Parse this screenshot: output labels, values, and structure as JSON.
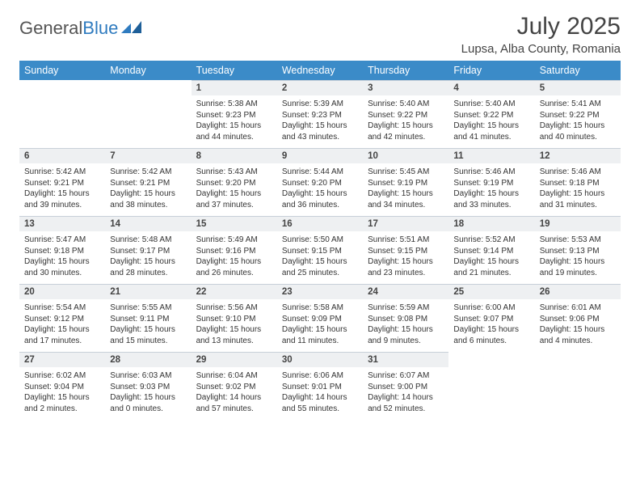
{
  "logo": {
    "word1": "General",
    "word2": "Blue"
  },
  "title": "July 2025",
  "location": "Lupsa, Alba County, Romania",
  "colors": {
    "header_bg": "#3b8bc8",
    "daynum_bg": "#eef0f2",
    "rule": "#c8d0d8"
  },
  "day_headers": [
    "Sunday",
    "Monday",
    "Tuesday",
    "Wednesday",
    "Thursday",
    "Friday",
    "Saturday"
  ],
  "weeks": [
    [
      {
        "n": "",
        "t": ""
      },
      {
        "n": "",
        "t": ""
      },
      {
        "n": "1",
        "t": "Sunrise: 5:38 AM\nSunset: 9:23 PM\nDaylight: 15 hours and 44 minutes."
      },
      {
        "n": "2",
        "t": "Sunrise: 5:39 AM\nSunset: 9:23 PM\nDaylight: 15 hours and 43 minutes."
      },
      {
        "n": "3",
        "t": "Sunrise: 5:40 AM\nSunset: 9:22 PM\nDaylight: 15 hours and 42 minutes."
      },
      {
        "n": "4",
        "t": "Sunrise: 5:40 AM\nSunset: 9:22 PM\nDaylight: 15 hours and 41 minutes."
      },
      {
        "n": "5",
        "t": "Sunrise: 5:41 AM\nSunset: 9:22 PM\nDaylight: 15 hours and 40 minutes."
      }
    ],
    [
      {
        "n": "6",
        "t": "Sunrise: 5:42 AM\nSunset: 9:21 PM\nDaylight: 15 hours and 39 minutes."
      },
      {
        "n": "7",
        "t": "Sunrise: 5:42 AM\nSunset: 9:21 PM\nDaylight: 15 hours and 38 minutes."
      },
      {
        "n": "8",
        "t": "Sunrise: 5:43 AM\nSunset: 9:20 PM\nDaylight: 15 hours and 37 minutes."
      },
      {
        "n": "9",
        "t": "Sunrise: 5:44 AM\nSunset: 9:20 PM\nDaylight: 15 hours and 36 minutes."
      },
      {
        "n": "10",
        "t": "Sunrise: 5:45 AM\nSunset: 9:19 PM\nDaylight: 15 hours and 34 minutes."
      },
      {
        "n": "11",
        "t": "Sunrise: 5:46 AM\nSunset: 9:19 PM\nDaylight: 15 hours and 33 minutes."
      },
      {
        "n": "12",
        "t": "Sunrise: 5:46 AM\nSunset: 9:18 PM\nDaylight: 15 hours and 31 minutes."
      }
    ],
    [
      {
        "n": "13",
        "t": "Sunrise: 5:47 AM\nSunset: 9:18 PM\nDaylight: 15 hours and 30 minutes."
      },
      {
        "n": "14",
        "t": "Sunrise: 5:48 AM\nSunset: 9:17 PM\nDaylight: 15 hours and 28 minutes."
      },
      {
        "n": "15",
        "t": "Sunrise: 5:49 AM\nSunset: 9:16 PM\nDaylight: 15 hours and 26 minutes."
      },
      {
        "n": "16",
        "t": "Sunrise: 5:50 AM\nSunset: 9:15 PM\nDaylight: 15 hours and 25 minutes."
      },
      {
        "n": "17",
        "t": "Sunrise: 5:51 AM\nSunset: 9:15 PM\nDaylight: 15 hours and 23 minutes."
      },
      {
        "n": "18",
        "t": "Sunrise: 5:52 AM\nSunset: 9:14 PM\nDaylight: 15 hours and 21 minutes."
      },
      {
        "n": "19",
        "t": "Sunrise: 5:53 AM\nSunset: 9:13 PM\nDaylight: 15 hours and 19 minutes."
      }
    ],
    [
      {
        "n": "20",
        "t": "Sunrise: 5:54 AM\nSunset: 9:12 PM\nDaylight: 15 hours and 17 minutes."
      },
      {
        "n": "21",
        "t": "Sunrise: 5:55 AM\nSunset: 9:11 PM\nDaylight: 15 hours and 15 minutes."
      },
      {
        "n": "22",
        "t": "Sunrise: 5:56 AM\nSunset: 9:10 PM\nDaylight: 15 hours and 13 minutes."
      },
      {
        "n": "23",
        "t": "Sunrise: 5:58 AM\nSunset: 9:09 PM\nDaylight: 15 hours and 11 minutes."
      },
      {
        "n": "24",
        "t": "Sunrise: 5:59 AM\nSunset: 9:08 PM\nDaylight: 15 hours and 9 minutes."
      },
      {
        "n": "25",
        "t": "Sunrise: 6:00 AM\nSunset: 9:07 PM\nDaylight: 15 hours and 6 minutes."
      },
      {
        "n": "26",
        "t": "Sunrise: 6:01 AM\nSunset: 9:06 PM\nDaylight: 15 hours and 4 minutes."
      }
    ],
    [
      {
        "n": "27",
        "t": "Sunrise: 6:02 AM\nSunset: 9:04 PM\nDaylight: 15 hours and 2 minutes."
      },
      {
        "n": "28",
        "t": "Sunrise: 6:03 AM\nSunset: 9:03 PM\nDaylight: 15 hours and 0 minutes."
      },
      {
        "n": "29",
        "t": "Sunrise: 6:04 AM\nSunset: 9:02 PM\nDaylight: 14 hours and 57 minutes."
      },
      {
        "n": "30",
        "t": "Sunrise: 6:06 AM\nSunset: 9:01 PM\nDaylight: 14 hours and 55 minutes."
      },
      {
        "n": "31",
        "t": "Sunrise: 6:07 AM\nSunset: 9:00 PM\nDaylight: 14 hours and 52 minutes."
      },
      {
        "n": "",
        "t": ""
      },
      {
        "n": "",
        "t": ""
      }
    ]
  ]
}
